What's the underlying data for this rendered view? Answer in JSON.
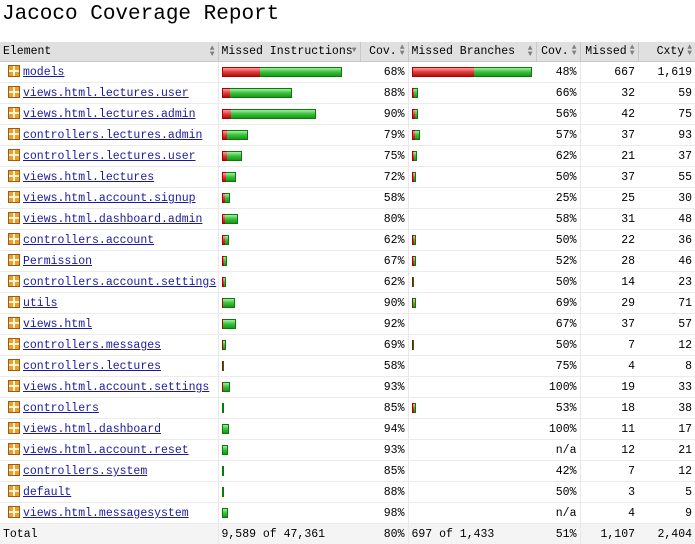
{
  "title": "Jacoco Coverage Report",
  "columns": {
    "element": "Element",
    "missed_instructions": "Missed Instructions",
    "cov1": "Cov.",
    "missed_branches": "Missed Branches",
    "cov2": "Cov.",
    "missed": "Missed",
    "cxty": "Cxty"
  },
  "rows": [
    {
      "name": "models",
      "instr_missed_frac": 0.32,
      "instr_width_frac": 1.0,
      "instr_cov": "68%",
      "br_missed_frac": 0.52,
      "br_width_frac": 1.0,
      "br_cov": "48%",
      "missed": "667",
      "cxty": "1,619"
    },
    {
      "name": "views.html.lectures.user",
      "instr_missed_frac": 0.12,
      "instr_width_frac": 0.58,
      "instr_cov": "88%",
      "br_missed_frac": 0.34,
      "br_width_frac": 0.05,
      "br_cov": "66%",
      "missed": "32",
      "cxty": "59"
    },
    {
      "name": "views.html.lectures.admin",
      "instr_missed_frac": 0.1,
      "instr_width_frac": 0.78,
      "instr_cov": "90%",
      "br_missed_frac": 0.44,
      "br_width_frac": 0.05,
      "br_cov": "56%",
      "missed": "42",
      "cxty": "75"
    },
    {
      "name": "controllers.lectures.admin",
      "instr_missed_frac": 0.21,
      "instr_width_frac": 0.22,
      "instr_cov": "79%",
      "br_missed_frac": 0.43,
      "br_width_frac": 0.07,
      "br_cov": "57%",
      "missed": "37",
      "cxty": "93"
    },
    {
      "name": "controllers.lectures.user",
      "instr_missed_frac": 0.25,
      "instr_width_frac": 0.17,
      "instr_cov": "75%",
      "br_missed_frac": 0.38,
      "br_width_frac": 0.04,
      "br_cov": "62%",
      "missed": "21",
      "cxty": "37"
    },
    {
      "name": "views.html.lectures",
      "instr_missed_frac": 0.28,
      "instr_width_frac": 0.12,
      "instr_cov": "72%",
      "br_missed_frac": 0.5,
      "br_width_frac": 0.03,
      "br_cov": "50%",
      "missed": "37",
      "cxty": "55"
    },
    {
      "name": "views.html.account.signup",
      "instr_missed_frac": 0.42,
      "instr_width_frac": 0.07,
      "instr_cov": "58%",
      "br_missed_frac": 0.75,
      "br_width_frac": 0.0,
      "br_cov": "25%",
      "missed": "25",
      "cxty": "30"
    },
    {
      "name": "views.html.dashboard.admin",
      "instr_missed_frac": 0.2,
      "instr_width_frac": 0.13,
      "instr_cov": "80%",
      "br_missed_frac": 0.42,
      "br_width_frac": 0.0,
      "br_cov": "58%",
      "missed": "31",
      "cxty": "48"
    },
    {
      "name": "controllers.account",
      "instr_missed_frac": 0.38,
      "instr_width_frac": 0.06,
      "instr_cov": "62%",
      "br_missed_frac": 0.5,
      "br_width_frac": 0.03,
      "br_cov": "50%",
      "missed": "22",
      "cxty": "36"
    },
    {
      "name": "Permission",
      "instr_missed_frac": 0.33,
      "instr_width_frac": 0.04,
      "instr_cov": "67%",
      "br_missed_frac": 0.48,
      "br_width_frac": 0.03,
      "br_cov": "52%",
      "missed": "28",
      "cxty": "46"
    },
    {
      "name": "controllers.account.settings",
      "instr_missed_frac": 0.38,
      "instr_width_frac": 0.03,
      "instr_cov": "62%",
      "br_missed_frac": 0.5,
      "br_width_frac": 0.015,
      "br_cov": "50%",
      "missed": "14",
      "cxty": "23"
    },
    {
      "name": "utils",
      "instr_missed_frac": 0.1,
      "instr_width_frac": 0.11,
      "instr_cov": "90%",
      "br_missed_frac": 0.31,
      "br_width_frac": 0.03,
      "br_cov": "69%",
      "missed": "29",
      "cxty": "71"
    },
    {
      "name": "views.html",
      "instr_missed_frac": 0.08,
      "instr_width_frac": 0.12,
      "instr_cov": "92%",
      "br_missed_frac": 0.33,
      "br_width_frac": 0.0,
      "br_cov": "67%",
      "missed": "37",
      "cxty": "57"
    },
    {
      "name": "controllers.messages",
      "instr_missed_frac": 0.31,
      "instr_width_frac": 0.03,
      "instr_cov": "69%",
      "br_missed_frac": 0.5,
      "br_width_frac": 0.015,
      "br_cov": "50%",
      "missed": "7",
      "cxty": "12"
    },
    {
      "name": "controllers.lectures",
      "instr_missed_frac": 0.42,
      "instr_width_frac": 0.012,
      "instr_cov": "58%",
      "br_missed_frac": 0.25,
      "br_width_frac": 0.0,
      "br_cov": "75%",
      "missed": "4",
      "cxty": "8"
    },
    {
      "name": "views.html.account.settings",
      "instr_missed_frac": 0.07,
      "instr_width_frac": 0.07,
      "instr_cov": "93%",
      "br_missed_frac": 0.0,
      "br_width_frac": 0.0,
      "br_cov": "100%",
      "missed": "19",
      "cxty": "33"
    },
    {
      "name": "controllers",
      "instr_missed_frac": 0.15,
      "instr_width_frac": 0.02,
      "instr_cov": "85%",
      "br_missed_frac": 0.47,
      "br_width_frac": 0.03,
      "br_cov": "53%",
      "missed": "18",
      "cxty": "38"
    },
    {
      "name": "views.html.dashboard",
      "instr_missed_frac": 0.06,
      "instr_width_frac": 0.06,
      "instr_cov": "94%",
      "br_missed_frac": 0.0,
      "br_width_frac": 0.0,
      "br_cov": "100%",
      "missed": "11",
      "cxty": "17"
    },
    {
      "name": "views.html.account.reset",
      "instr_missed_frac": 0.07,
      "instr_width_frac": 0.05,
      "instr_cov": "93%",
      "br_missed_frac": 0.0,
      "br_width_frac": 0.0,
      "br_cov": "n/a",
      "missed": "12",
      "cxty": "21"
    },
    {
      "name": "controllers.system",
      "instr_missed_frac": 0.15,
      "instr_width_frac": 0.012,
      "instr_cov": "85%",
      "br_missed_frac": 0.58,
      "br_width_frac": 0.0,
      "br_cov": "42%",
      "missed": "7",
      "cxty": "12"
    },
    {
      "name": "default",
      "instr_missed_frac": 0.12,
      "instr_width_frac": 0.012,
      "instr_cov": "88%",
      "br_missed_frac": 0.5,
      "br_width_frac": 0.0,
      "br_cov": "50%",
      "missed": "3",
      "cxty": "5"
    },
    {
      "name": "views.html.messagesystem",
      "instr_missed_frac": 0.02,
      "instr_width_frac": 0.05,
      "instr_cov": "98%",
      "br_missed_frac": 0.0,
      "br_width_frac": 0.0,
      "br_cov": "n/a",
      "missed": "4",
      "cxty": "9"
    }
  ],
  "total": {
    "label": "Total",
    "instructions": "9,589 of 47,361",
    "instr_cov": "80%",
    "branches": "697 of 1,433",
    "br_cov": "51%",
    "missed": "1,107",
    "cxty": "2,404"
  }
}
